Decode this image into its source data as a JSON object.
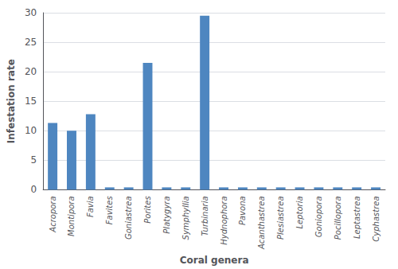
{
  "chart_data": {
    "type": "bar",
    "categories": [
      "Acropora",
      "Montipora",
      "Favia",
      "Favites",
      "Goniastrea",
      "Porites",
      "Platygyra",
      "Symphyllia",
      "Turbinaria",
      "Hydnophora",
      "Pavona",
      "Acanthastrea",
      "Plesiastrea",
      "Leptoria",
      "Goniopora",
      "Pocillopora",
      "Leptastrea",
      "Cyphastrea"
    ],
    "values": [
      11.3,
      10.0,
      12.8,
      0.4,
      0.4,
      21.5,
      0.4,
      0.4,
      29.5,
      0.4,
      0.4,
      0.4,
      0.4,
      0.4,
      0.4,
      0.4,
      0.4,
      0.4
    ],
    "color": "#4e86c0",
    "xlabel": "Coral genera",
    "ylabel": "Infestation rate",
    "ylim": [
      0,
      30
    ],
    "yticks": [
      0,
      5,
      10,
      15,
      20,
      25,
      30
    ],
    "grid": true
  }
}
